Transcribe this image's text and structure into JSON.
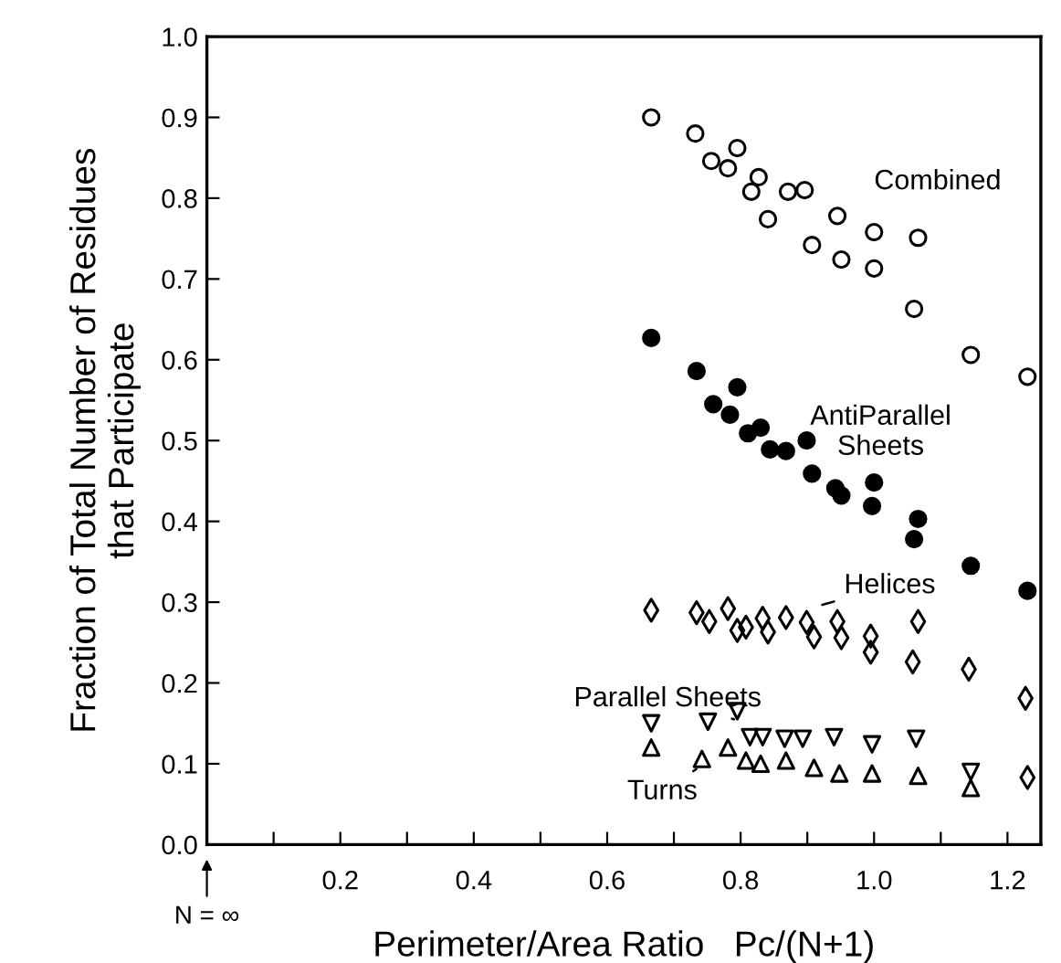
{
  "chart_data": {
    "type": "scatter",
    "xlabel": "Perimeter/Area Ratio   Pc/(N+1)",
    "ylabel": "Fraction of Total Number of Residues\nthat Participate",
    "xlim": [
      0,
      1.25
    ],
    "ylim": [
      0,
      1.0
    ],
    "xticks": [
      {
        "value": 0.1,
        "label": null
      },
      0.2,
      {
        "value": 0.3,
        "label": null
      },
      0.4,
      {
        "value": 0.5,
        "label": null
      },
      0.6,
      {
        "value": 0.7,
        "label": null
      },
      0.8,
      {
        "value": 0.9,
        "label": null
      },
      {
        "value": 1.0,
        "label": "1.0"
      },
      {
        "value": 1.1,
        "label": null
      },
      1.2
    ],
    "yticks": [
      {
        "value": 0,
        "label": "0.0"
      },
      0.1,
      0.2,
      0.3,
      0.4,
      0.5,
      0.6,
      0.7,
      0.8,
      0.9,
      {
        "value": 1.0,
        "label": "1.0"
      }
    ],
    "grid": false,
    "annotations": [
      "N = ∞"
    ],
    "series": [
      {
        "name": "Combined",
        "color": "#000000",
        "marker": "circle_open",
        "x": [
          0.666,
          0.732,
          0.756,
          0.781,
          0.795,
          0.827,
          0.816,
          0.841,
          0.871,
          0.896,
          0.907,
          0.945,
          0.951,
          1.0,
          1.0,
          1.066,
          1.06,
          1.145,
          1.23
        ],
        "values": [
          0.9,
          0.88,
          0.846,
          0.837,
          0.862,
          0.826,
          0.808,
          0.774,
          0.808,
          0.81,
          0.742,
          0.778,
          0.724,
          0.758,
          0.713,
          0.751,
          0.663,
          0.606,
          0.579
        ]
      },
      {
        "name": "AntiParallel\nSheets",
        "color": "#000000",
        "marker": "circle",
        "x": [
          0.666,
          0.734,
          0.759,
          0.795,
          0.784,
          0.811,
          0.83,
          0.844,
          0.868,
          0.899,
          0.907,
          0.942,
          0.951,
          1.0,
          0.997,
          1.066,
          1.06,
          1.145,
          1.23
        ],
        "values": [
          0.627,
          0.586,
          0.545,
          0.566,
          0.532,
          0.509,
          0.516,
          0.489,
          0.487,
          0.5,
          0.459,
          0.441,
          0.432,
          0.448,
          0.419,
          0.403,
          0.378,
          0.345,
          0.314
        ]
      },
      {
        "name": "Helices",
        "color": "#000000",
        "marker": "diamond_open",
        "x": [
          0.666,
          0.734,
          0.753,
          0.781,
          0.795,
          0.808,
          0.833,
          0.841,
          0.868,
          0.899,
          0.91,
          0.945,
          0.951,
          0.995,
          0.995,
          1.066,
          1.058,
          1.142,
          1.227,
          1.23
        ],
        "values": [
          0.29,
          0.287,
          0.276,
          0.292,
          0.265,
          0.269,
          0.28,
          0.263,
          0.281,
          0.275,
          0.257,
          0.276,
          0.256,
          0.258,
          0.238,
          0.276,
          0.226,
          0.217,
          0.181,
          0.083
        ]
      },
      {
        "name": "Parallel Sheets",
        "color": "#000000",
        "marker": "triangle_down_open",
        "x": [
          0.666,
          0.751,
          0.795,
          0.814,
          0.833,
          0.866,
          0.893,
          0.94,
          0.997,
          1.063,
          1.145
        ],
        "values": [
          0.15,
          0.152,
          0.165,
          0.133,
          0.133,
          0.131,
          0.131,
          0.133,
          0.124,
          0.131,
          0.09
        ]
      },
      {
        "name": "Turns",
        "color": "#000000",
        "marker": "triangle_open",
        "x": [
          0.666,
          0.742,
          0.781,
          0.808,
          0.83,
          0.868,
          0.91,
          0.948,
          0.997,
          1.066,
          1.145
        ],
        "values": [
          0.12,
          0.106,
          0.12,
          0.104,
          0.1,
          0.104,
          0.095,
          0.088,
          0.088,
          0.085,
          0.07
        ]
      }
    ]
  }
}
